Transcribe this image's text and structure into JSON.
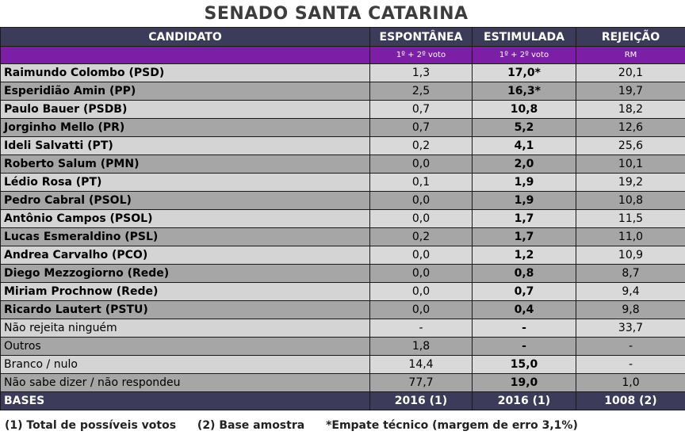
{
  "title": "SENADO SANTA CATARINA",
  "headers": {
    "candidato": "CANDIDATO",
    "espontanea": "ESPONTÂNEA",
    "estimulada": "ESTIMULADA",
    "rejeicao": "REJEIÇÃO"
  },
  "subheaders": {
    "espontanea": "1º + 2º voto",
    "estimulada": "1º + 2º voto",
    "rejeicao": "RM"
  },
  "rows": [
    {
      "name": "Raimundo Colombo (PSD)",
      "espontanea": "1,3",
      "estimulada": "17,0*",
      "rejeicao": "20,1"
    },
    {
      "name": "Esperidião Amin (PP)",
      "espontanea": "2,5",
      "estimulada": "16,3*",
      "rejeicao": "19,7"
    },
    {
      "name": "Paulo Bauer (PSDB)",
      "espontanea": "0,7",
      "estimulada": "10,8",
      "rejeicao": "18,2"
    },
    {
      "name": "Jorginho Mello (PR)",
      "espontanea": "0,7",
      "estimulada": "5,2",
      "rejeicao": "12,6"
    },
    {
      "name": "Ideli Salvatti (PT)",
      "espontanea": "0,2",
      "estimulada": "4,1",
      "rejeicao": "25,6"
    },
    {
      "name": "Roberto Salum (PMN)",
      "espontanea": "0,0",
      "estimulada": "2,0",
      "rejeicao": "10,1"
    },
    {
      "name": "Lédio Rosa (PT)",
      "espontanea": "0,1",
      "estimulada": "1,9",
      "rejeicao": "19,2"
    },
    {
      "name": "Pedro Cabral (PSOL)",
      "espontanea": "0,0",
      "estimulada": "1,9",
      "rejeicao": "10,8"
    },
    {
      "name": "Antônio Campos (PSOL)",
      "espontanea": "0,0",
      "estimulada": "1,7",
      "rejeicao": "11,5"
    },
    {
      "name": "Lucas Esmeraldino (PSL)",
      "espontanea": "0,2",
      "estimulada": "1,7",
      "rejeicao": "11,0"
    },
    {
      "name": "Andrea Carvalho (PCO)",
      "espontanea": "0,0",
      "estimulada": "1,2",
      "rejeicao": "10,9"
    },
    {
      "name": "Diego Mezzogiorno (Rede)",
      "espontanea": "0,0",
      "estimulada": "0,8",
      "rejeicao": "8,7"
    },
    {
      "name": "Miriam Prochnow (Rede)",
      "espontanea": "0,0",
      "estimulada": "0,7",
      "rejeicao": "9,4"
    },
    {
      "name": "Ricardo Lautert (PSTU)",
      "espontanea": "0,0",
      "estimulada": "0,4",
      "rejeicao": "9,8"
    },
    {
      "name": "Não rejeita ninguém",
      "espontanea": "-",
      "estimulada": "-",
      "rejeicao": "33,7"
    },
    {
      "name": "Outros",
      "espontanea": "1,8",
      "estimulada": "-",
      "rejeicao": "-"
    },
    {
      "name": "Branco / nulo",
      "espontanea": "14,4",
      "estimulada": "15,0",
      "rejeicao": "-"
    },
    {
      "name": "Não sabe dizer / não respondeu",
      "espontanea": "77,7",
      "estimulada": "19,0",
      "rejeicao": "1,0"
    }
  ],
  "bases": {
    "name": "BASES",
    "espontanea": "2016 (1)",
    "estimulada": "2016 (1)",
    "rejeicao": "1008 (2)"
  },
  "footnotes": [
    "(1) Total de possíveis votos",
    "(2) Base amostra",
    "*Empate técnico (margem de erro 3,1%)"
  ]
}
